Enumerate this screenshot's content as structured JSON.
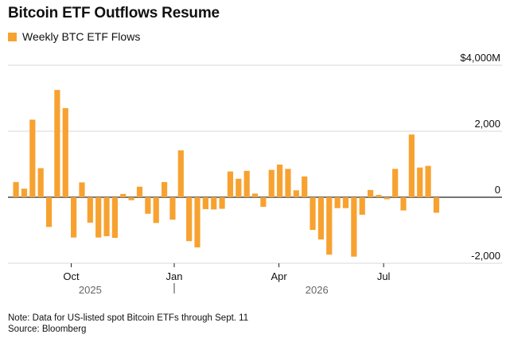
{
  "title": "Bitcoin ETF Outflows Resume",
  "legend": {
    "label": "Weekly BTC ETF Flows",
    "color": "#f7a230"
  },
  "chart_data": {
    "type": "bar",
    "title": "Bitcoin ETF Outflows Resume",
    "series": [
      {
        "name": "Weekly BTC ETF Flows",
        "color": "#f7a230",
        "values": [
          460,
          260,
          2350,
          880,
          -900,
          3250,
          2700,
          -1220,
          450,
          -770,
          -1220,
          -1180,
          -1230,
          100,
          -90,
          320,
          -500,
          -780,
          460,
          -680,
          1420,
          -1330,
          -1520,
          -360,
          -370,
          -350,
          780,
          560,
          800,
          110,
          -290,
          830,
          990,
          860,
          210,
          630,
          -990,
          -1280,
          -1740,
          -330,
          -330,
          -1800,
          -530,
          220,
          70,
          -60,
          860,
          -400,
          1900,
          900,
          950,
          -470
        ]
      }
    ],
    "y_ticks": [
      {
        "value": 4000,
        "label": "$4,000M"
      },
      {
        "value": 2000,
        "label": "2,000"
      },
      {
        "value": 0,
        "label": "0"
      },
      {
        "value": -2000,
        "label": "-2,000"
      }
    ],
    "ylim": [
      -2000,
      4000
    ],
    "x_ticks": [
      {
        "bar_index": 6.7,
        "label": "Oct"
      },
      {
        "bar_index": 19.2,
        "label": "Jan"
      },
      {
        "bar_index": 31.9,
        "label": "Apr"
      },
      {
        "bar_index": 44.6,
        "label": "Jul"
      }
    ],
    "year_labels": [
      {
        "bar_index": 9,
        "label": "2025"
      },
      {
        "bar_index": 36.5,
        "label": "2026"
      }
    ],
    "year_divider_bar_index": 19.2,
    "grid": true
  },
  "notes": {
    "note": "Note: Data for US-listed spot Bitcoin ETFs through Sept. 11",
    "source": "Source: Bloomberg"
  }
}
